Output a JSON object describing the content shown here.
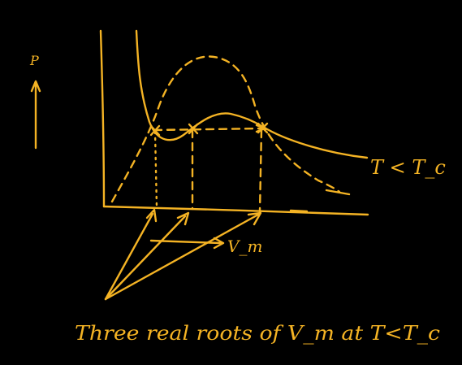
{
  "diagram": {
    "background": "#000000",
    "ink_color": "#F4B324",
    "y_axis_label": "P",
    "x_axis_label": "V_m",
    "curve_label": "T < T_c",
    "caption": "Three real roots of V_m at T<T_c"
  }
}
